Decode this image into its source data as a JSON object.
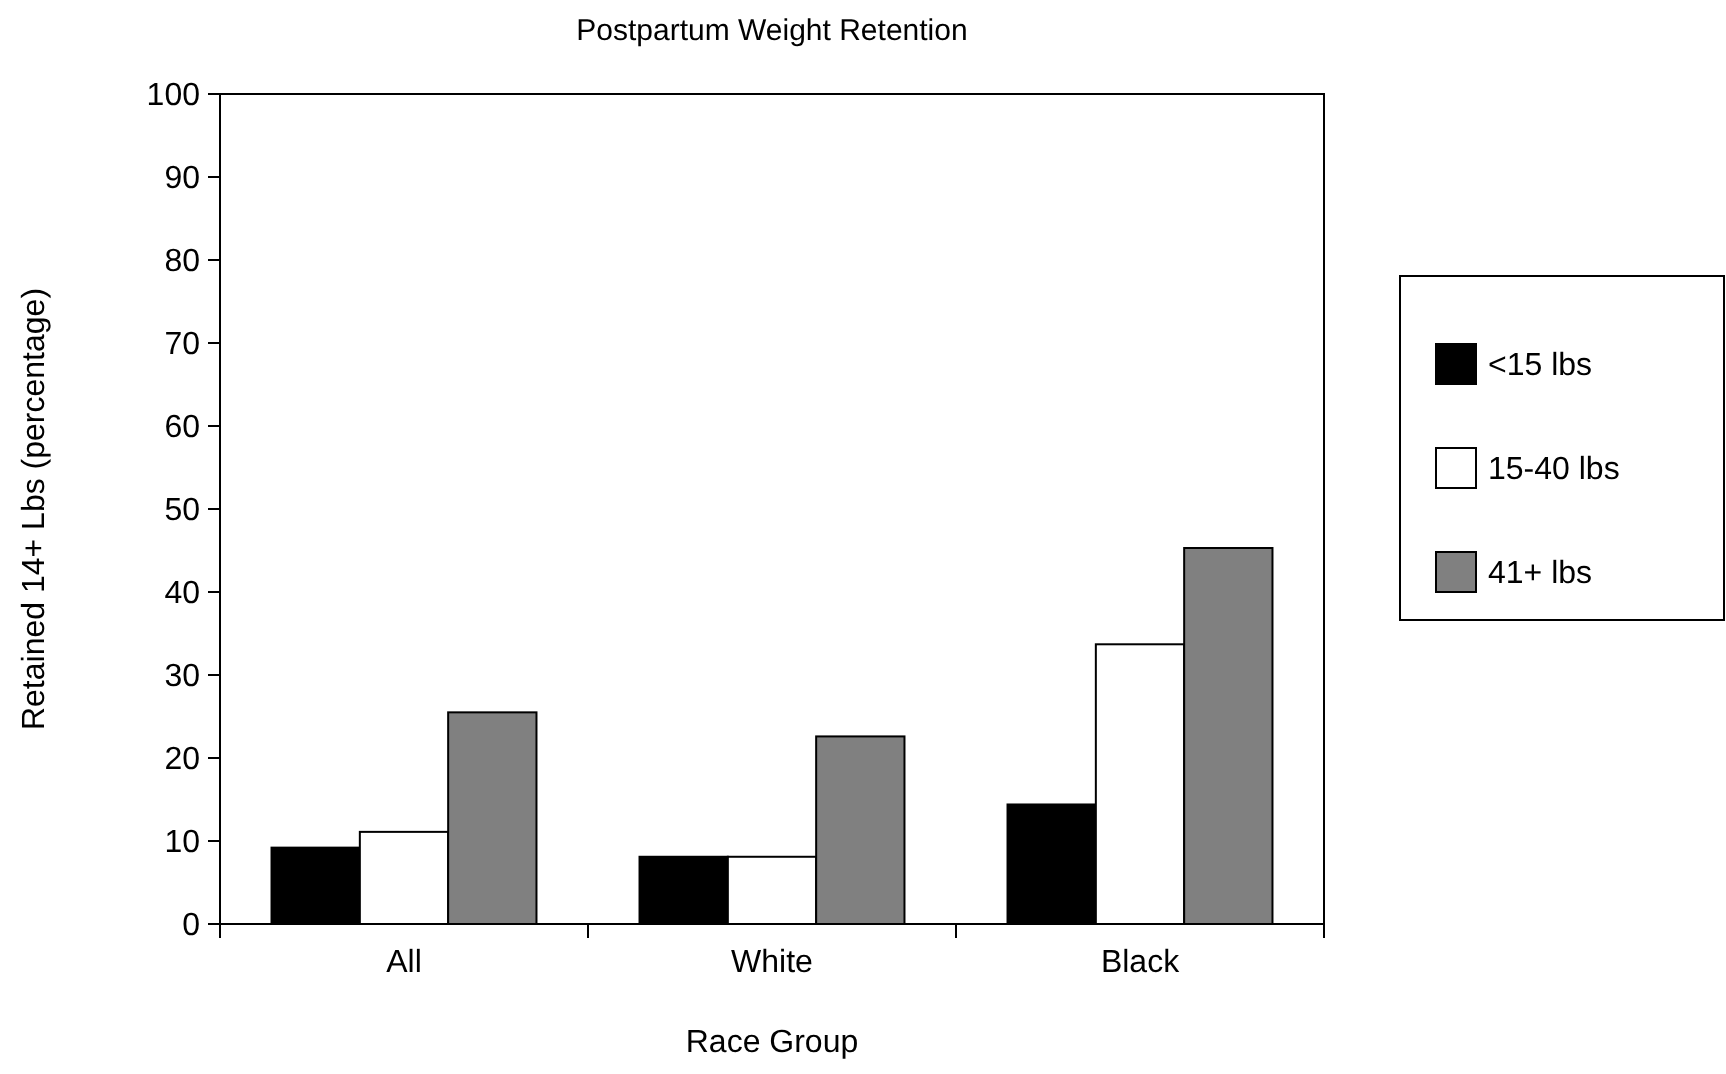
{
  "chart_data": {
    "type": "bar",
    "title": "Postpartum Weight Retention",
    "xlabel": "Race Group",
    "ylabel": "Retained 14+ Lbs (percentage)",
    "categories": [
      "All",
      "White",
      "Black"
    ],
    "series": [
      {
        "name": "<15 lbs",
        "color": "#000000",
        "values": [
          9.2,
          8.1,
          14.4
        ]
      },
      {
        "name": "15-40 lbs",
        "color": "#ffffff",
        "values": [
          11.1,
          8.1,
          33.7
        ]
      },
      {
        "name": "41+ lbs",
        "color": "#808080",
        "values": [
          25.5,
          22.6,
          45.3
        ]
      }
    ],
    "ylim": [
      0,
      100
    ],
    "yticks": [
      0,
      10,
      20,
      30,
      40,
      50,
      60,
      70,
      80,
      90,
      100
    ],
    "grid": false,
    "legend": "right"
  }
}
